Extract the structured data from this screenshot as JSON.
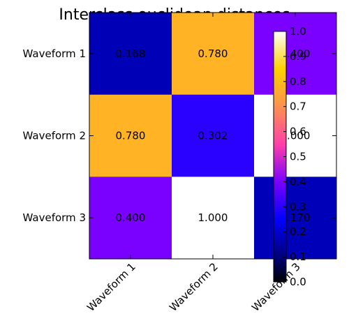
{
  "chart_data": {
    "type": "heatmap",
    "title": "Interclass euclidean distances",
    "rows": [
      "Waveform 1",
      "Waveform 2",
      "Waveform 3"
    ],
    "columns": [
      "Waveform 1",
      "Waveform 2",
      "Waveform 3"
    ],
    "values": [
      [
        0.168,
        0.78,
        0.4
      ],
      [
        0.78,
        0.302,
        1.0
      ],
      [
        0.4,
        1.0,
        0.17
      ]
    ],
    "value_labels": [
      [
        "0.168",
        "0.780",
        "0.400"
      ],
      [
        "0.780",
        "0.302",
        "1.000"
      ],
      [
        "0.400",
        "1.000",
        "0.170"
      ]
    ],
    "colorbar": {
      "colormap": "gnuplot2",
      "range": [
        0.0,
        1.0
      ],
      "ticks": [
        "0.0",
        "0.1",
        "0.2",
        "0.3",
        "0.4",
        "0.5",
        "0.6",
        "0.7",
        "0.8",
        "0.9",
        "1.0"
      ]
    },
    "grid": false
  }
}
